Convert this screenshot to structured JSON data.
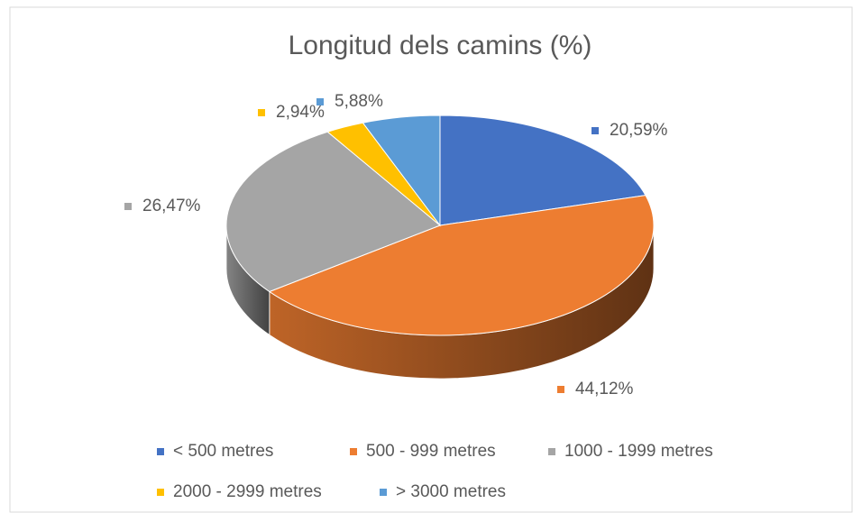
{
  "chart_data": {
    "type": "pie",
    "title": "Longitud dels camins (%)",
    "categories": [
      "< 500 metres",
      "500 - 999 metres",
      "1000 - 1999 metres",
      "2000 - 2999 metres",
      "> 3000 metres"
    ],
    "values": [
      20.59,
      44.12,
      26.47,
      2.94,
      5.88
    ],
    "value_labels": [
      "20,59%",
      "44,12%",
      "26,47%",
      "2,94%",
      "5,88%"
    ],
    "colors": [
      "#4472c4",
      "#ed7d31",
      "#a5a5a5",
      "#ffc000",
      "#5b9bd5"
    ],
    "legend": "bottom"
  }
}
